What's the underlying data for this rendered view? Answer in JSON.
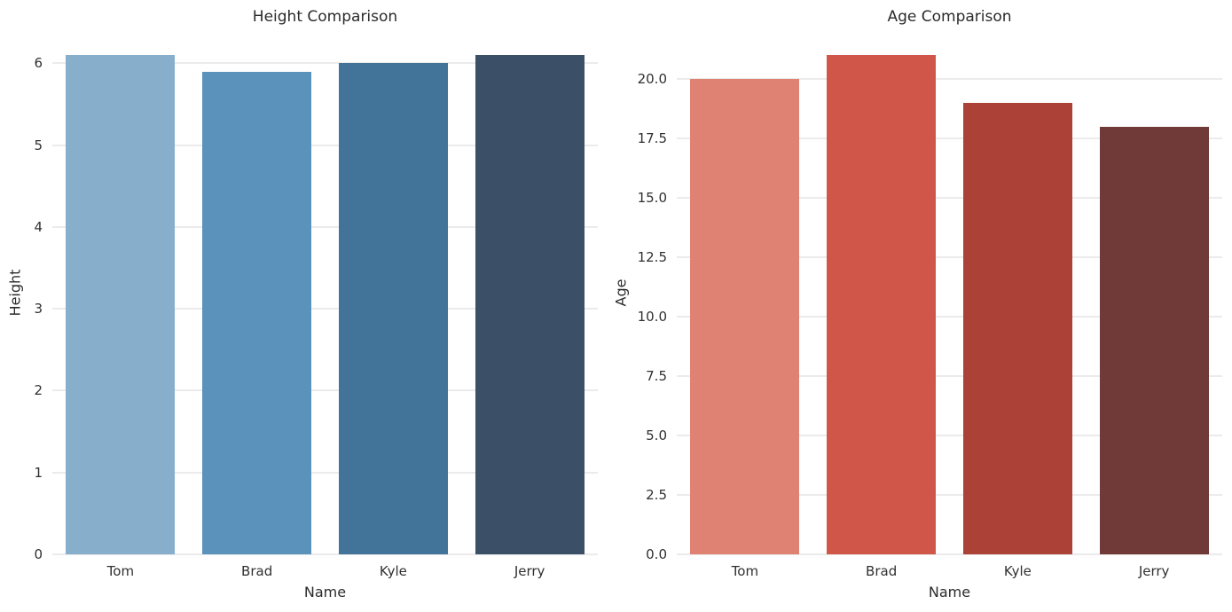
{
  "figure": {
    "background": "#ffffff",
    "grid_color": "#d7d7d7",
    "text_color": "#2b2b2b"
  },
  "chart_data": [
    {
      "type": "bar",
      "title": "Height Comparison",
      "xlabel": "Name",
      "ylabel": "Height",
      "categories": [
        "Tom",
        "Brad",
        "Kyle",
        "Jerry"
      ],
      "values": [
        6.1,
        5.9,
        6.0,
        6.1
      ],
      "bar_colors": [
        "#87AECB",
        "#5B92BC",
        "#427399",
        "#3B5066"
      ],
      "ylim": [
        0,
        6.405
      ],
      "yticks": [
        0,
        1,
        2,
        3,
        4,
        5,
        6
      ],
      "ytick_labels": [
        "0",
        "1",
        "2",
        "3",
        "4",
        "5",
        "6"
      ],
      "bar_width_fraction": 0.8,
      "grid": true,
      "legend_position": "none"
    },
    {
      "type": "bar",
      "title": "Age Comparison",
      "xlabel": "Name",
      "ylabel": "Age",
      "categories": [
        "Tom",
        "Brad",
        "Kyle",
        "Jerry"
      ],
      "values": [
        20,
        21,
        19,
        18
      ],
      "bar_colors": [
        "#E08273",
        "#D0564A",
        "#AC4138",
        "#6F3A37"
      ],
      "ylim": [
        0,
        22.05
      ],
      "yticks": [
        0,
        2.5,
        5,
        7.5,
        10,
        12.5,
        15,
        17.5,
        20
      ],
      "ytick_labels": [
        "0.0",
        "2.5",
        "5.0",
        "7.5",
        "10.0",
        "12.5",
        "15.0",
        "17.5",
        "20.0"
      ],
      "bar_width_fraction": 0.8,
      "grid": true,
      "legend_position": "none"
    }
  ]
}
